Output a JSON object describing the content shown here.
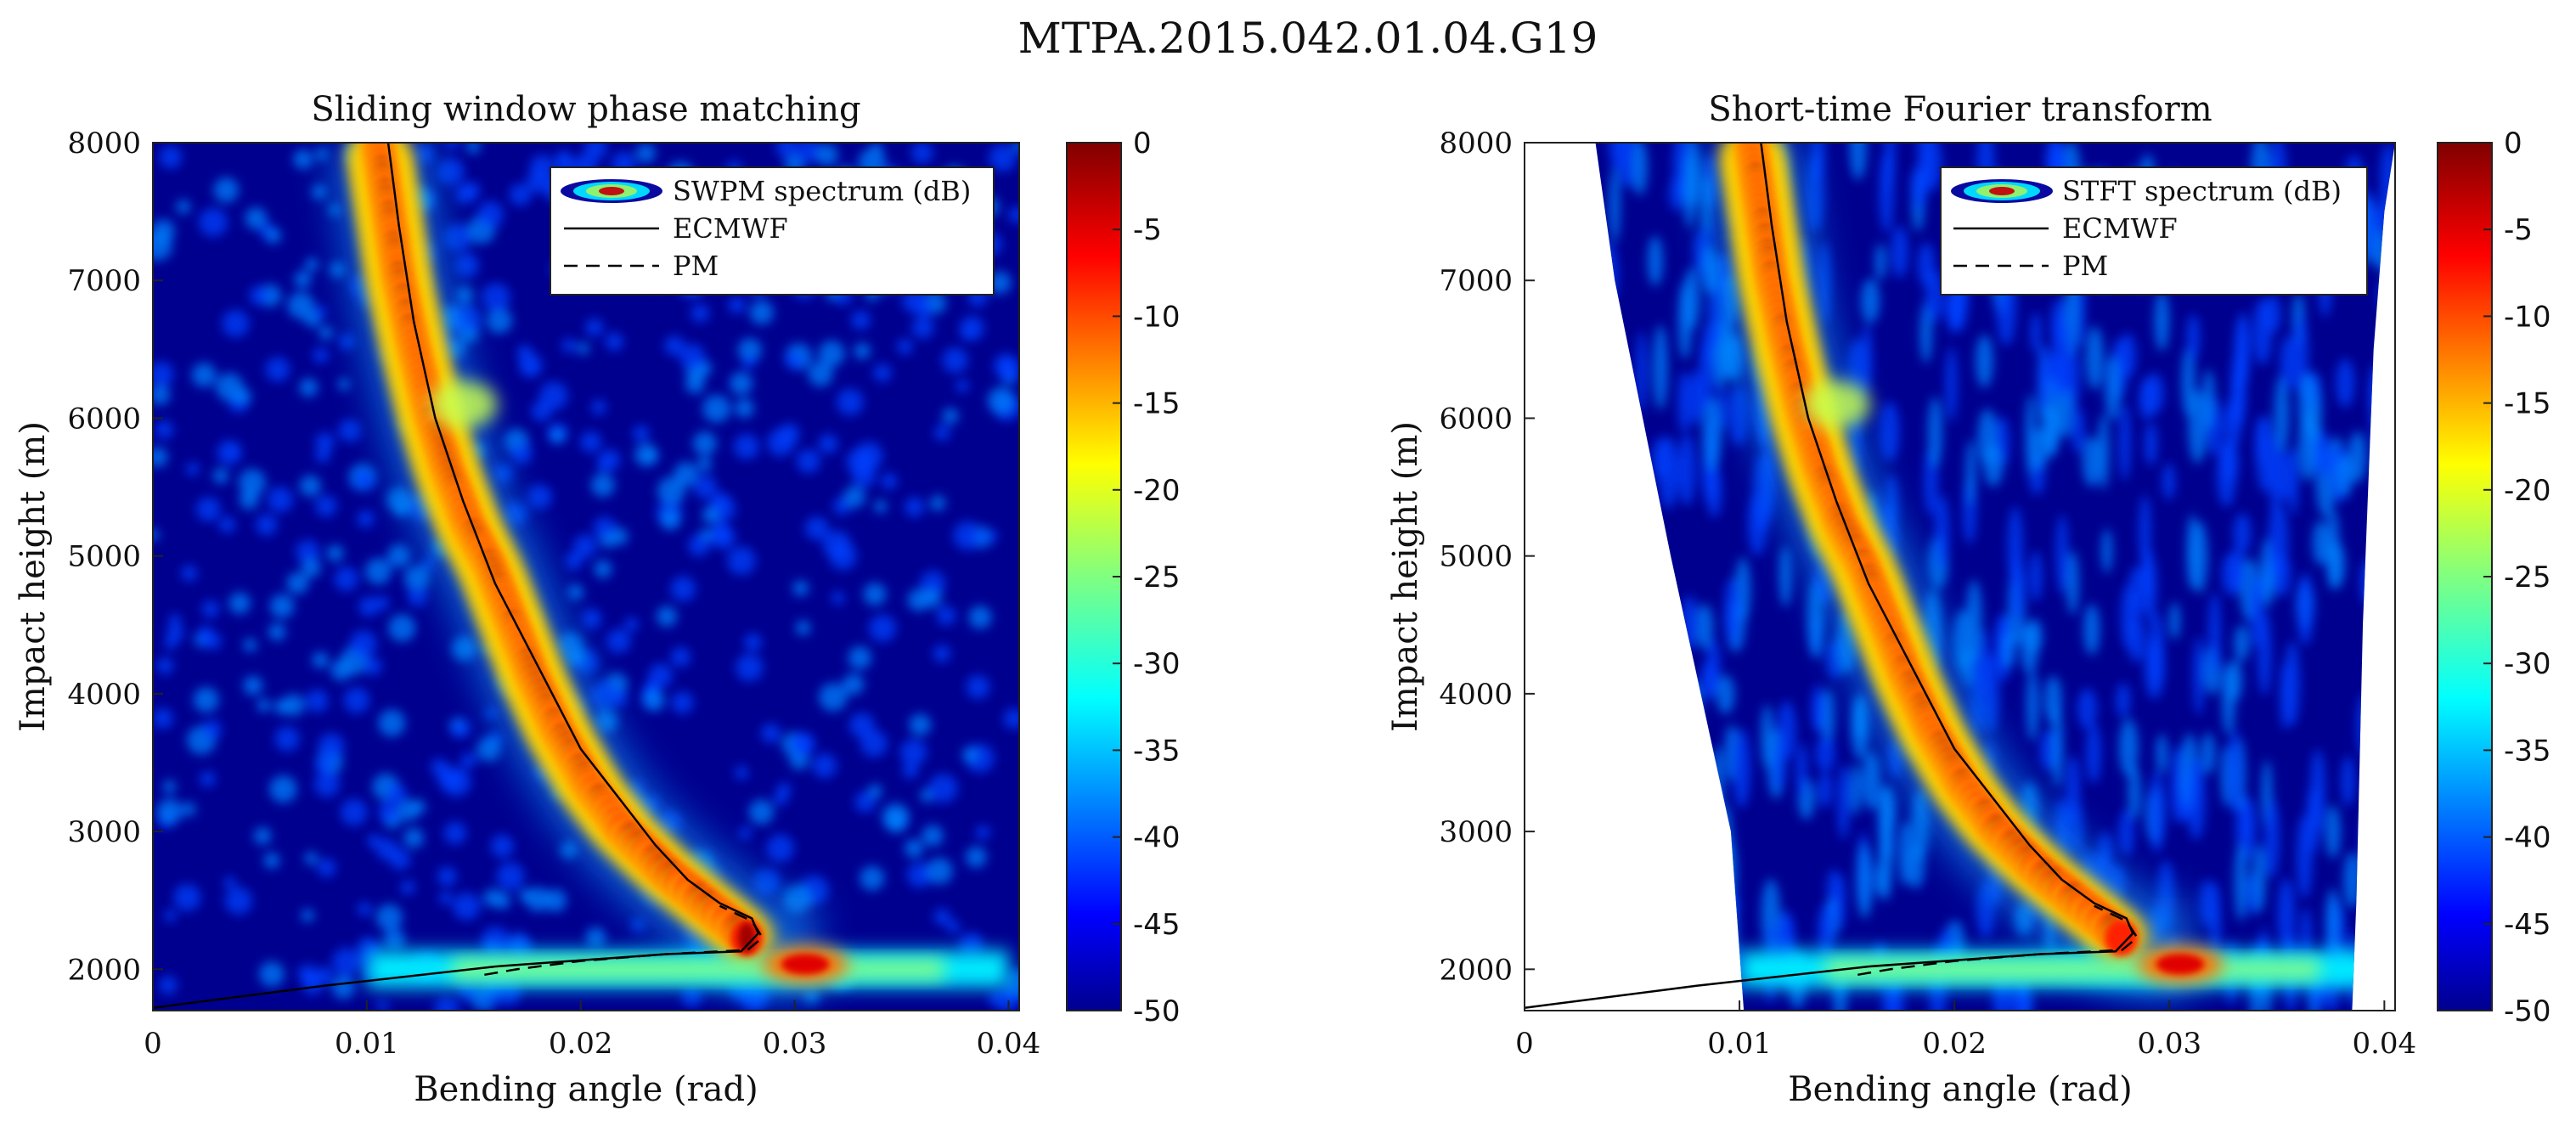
{
  "figure_title": "MTPA.2015.042.01.04.G19",
  "colors": {
    "low": "#00008f",
    "mid": "#00ffff",
    "high": "#800000"
  },
  "chart_data": [
    {
      "type": "heatmap",
      "title": "Sliding window phase matching",
      "xlabel": "Bending angle (rad)",
      "ylabel": "Impact height (m)",
      "xlim": [
        0,
        0.0405
      ],
      "ylim": [
        1700,
        8000
      ],
      "xticks": [
        0,
        0.01,
        0.02,
        0.03,
        0.04
      ],
      "xticklabels": [
        "0",
        "0.01",
        "0.02",
        "0.03",
        "0.04"
      ],
      "yticks": [
        2000,
        3000,
        4000,
        5000,
        6000,
        7000,
        8000
      ],
      "yticklabels": [
        "2000",
        "3000",
        "4000",
        "5000",
        "6000",
        "7000",
        "8000"
      ],
      "colorbar": {
        "range": [
          -50,
          0
        ],
        "ticks": [
          0,
          -5,
          -10,
          -15,
          -20,
          -25,
          -30,
          -35,
          -40,
          -45,
          -50
        ],
        "ticklabels": [
          "0",
          "-5",
          "-10",
          "-15",
          "-20",
          "-25",
          "-30",
          "-35",
          "-40",
          "-45",
          "-50"
        ],
        "colormap": "jet"
      },
      "legend": {
        "location": "top-right",
        "entries": [
          "SWPM spectrum (dB)",
          "ECMWF",
          "PM"
        ]
      },
      "ridge": {
        "x": [
          0.0105,
          0.011,
          0.0115,
          0.0122,
          0.013,
          0.0138,
          0.0148,
          0.0158,
          0.0168,
          0.0178,
          0.019,
          0.0205,
          0.022,
          0.024,
          0.026,
          0.0272,
          0.028,
          0.029,
          0.031
        ],
        "y": [
          8000,
          7500,
          7000,
          6500,
          6000,
          5600,
          5200,
          4900,
          4500,
          4100,
          3700,
          3300,
          3000,
          2700,
          2450,
          2300,
          2200,
          2150,
          2150
        ]
      },
      "surface_band": {
        "y": 2000,
        "x_range": [
          0.01,
          0.04
        ],
        "peak_x": 0.0305
      },
      "series": [
        {
          "name": "ECMWF",
          "style": "solid",
          "x": [
            0,
            0.008,
            0.016,
            0.024,
            0.0275,
            0.0283,
            0.028,
            0.0265,
            0.025,
            0.0235,
            0.022,
            0.02,
            0.018,
            0.016,
            0.0145,
            0.0132,
            0.0122,
            0.0115,
            0.011
          ],
          "y": [
            1720,
            1880,
            2020,
            2110,
            2130,
            2260,
            2370,
            2480,
            2650,
            2900,
            3200,
            3600,
            4200,
            4800,
            5400,
            6000,
            6700,
            7400,
            8000
          ]
        },
        {
          "name": "PM",
          "style": "dashed",
          "x": [
            0.0155,
            0.017,
            0.02,
            0.024,
            0.0278,
            0.0285,
            0.028,
            0.0265
          ],
          "y": [
            1960,
            2000,
            2060,
            2110,
            2140,
            2230,
            2350,
            2460
          ]
        }
      ],
      "data_mask": "none"
    },
    {
      "type": "heatmap",
      "title": "Short-time Fourier transform",
      "xlabel": "Bending angle (rad)",
      "ylabel": "Impact height (m)",
      "xlim": [
        0,
        0.0405
      ],
      "ylim": [
        1700,
        8000
      ],
      "xticks": [
        0,
        0.01,
        0.02,
        0.03,
        0.04
      ],
      "xticklabels": [
        "0",
        "0.01",
        "0.02",
        "0.03",
        "0.04"
      ],
      "yticks": [
        2000,
        3000,
        4000,
        5000,
        6000,
        7000,
        8000
      ],
      "yticklabels": [
        "2000",
        "3000",
        "4000",
        "5000",
        "6000",
        "7000",
        "8000"
      ],
      "colorbar": {
        "range": [
          -50,
          0
        ],
        "ticks": [
          0,
          -5,
          -10,
          -15,
          -20,
          -25,
          -30,
          -35,
          -40,
          -45,
          -50
        ],
        "ticklabels": [
          "0",
          "-5",
          "-10",
          "-15",
          "-20",
          "-25",
          "-30",
          "-35",
          "-40",
          "-45",
          "-50"
        ],
        "colormap": "jet"
      },
      "legend": {
        "location": "top-right",
        "entries": [
          "STFT spectrum (dB)",
          "ECMWF",
          "PM"
        ]
      },
      "ridge": {
        "x": [
          0.0105,
          0.011,
          0.0115,
          0.0122,
          0.013,
          0.0138,
          0.0148,
          0.0158,
          0.0168,
          0.0178,
          0.019,
          0.0205,
          0.022,
          0.024,
          0.026,
          0.0272,
          0.028,
          0.029,
          0.031
        ],
        "y": [
          8000,
          7500,
          7000,
          6500,
          6000,
          5600,
          5200,
          4900,
          4500,
          4100,
          3700,
          3300,
          3000,
          2700,
          2450,
          2300,
          2200,
          2150,
          2150
        ]
      },
      "surface_band": {
        "y": 2000,
        "x_range": [
          0.01,
          0.04
        ],
        "peak_x": 0.0305
      },
      "series": [
        {
          "name": "ECMWF",
          "style": "solid",
          "x": [
            0,
            0.008,
            0.016,
            0.024,
            0.0275,
            0.0283,
            0.028,
            0.0265,
            0.025,
            0.0235,
            0.022,
            0.02,
            0.018,
            0.016,
            0.0145,
            0.0132,
            0.0122,
            0.0115,
            0.011
          ],
          "y": [
            1720,
            1880,
            2020,
            2110,
            2130,
            2260,
            2370,
            2480,
            2650,
            2900,
            3200,
            3600,
            4200,
            4800,
            5400,
            6000,
            6700,
            7400,
            8000
          ]
        },
        {
          "name": "PM",
          "style": "dashed",
          "x": [
            0.0155,
            0.017,
            0.02,
            0.024,
            0.0278,
            0.0285,
            0.028,
            0.0265
          ],
          "y": [
            1960,
            2000,
            2060,
            2110,
            2140,
            2230,
            2350,
            2460
          ]
        }
      ],
      "data_mask": "stft",
      "mask_left_edge": {
        "x": [
          0.0033,
          0.0042,
          0.0055,
          0.0068,
          0.0082,
          0.0096,
          0.0102
        ],
        "y": [
          8000,
          7000,
          6000,
          5000,
          4000,
          3000,
          1700
        ]
      },
      "mask_right_edge": {
        "x": [
          0.0385,
          0.0387,
          0.039,
          0.0395,
          0.04,
          0.0405
        ],
        "y": [
          1700,
          2500,
          4500,
          6500,
          7500,
          8000
        ]
      }
    }
  ]
}
